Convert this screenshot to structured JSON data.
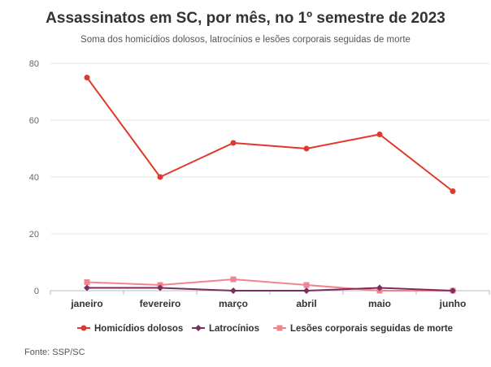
{
  "header": {
    "title": "Assassinatos em SC, por mês, no 1º semestre de 2023",
    "subtitle": "Soma dos homicídios dolosos, latrocínios e lesões corporais seguidas de morte"
  },
  "footer": {
    "source": "Fonte: SSP/SC"
  },
  "chart_data": {
    "type": "line",
    "categories": [
      "janeiro",
      "fevereiro",
      "março",
      "abril",
      "maio",
      "junho"
    ],
    "ylim": [
      0,
      80
    ],
    "yticks": [
      0,
      20,
      40,
      60,
      80
    ],
    "grid": true,
    "legend_position": "bottom",
    "series": [
      {
        "name": "Homicídios dolosos",
        "color": "#e0392b",
        "marker": "circle",
        "values": [
          75,
          40,
          52,
          50,
          55,
          35
        ]
      },
      {
        "name": "Latrocínios",
        "color": "#7b2d5e",
        "marker": "diamond",
        "values": [
          1,
          1,
          0,
          0,
          1,
          0
        ]
      },
      {
        "name": "Lesões corporais seguidas de morte",
        "color": "#f08590",
        "marker": "square",
        "values": [
          3,
          2,
          4,
          2,
          0,
          0
        ]
      }
    ]
  }
}
